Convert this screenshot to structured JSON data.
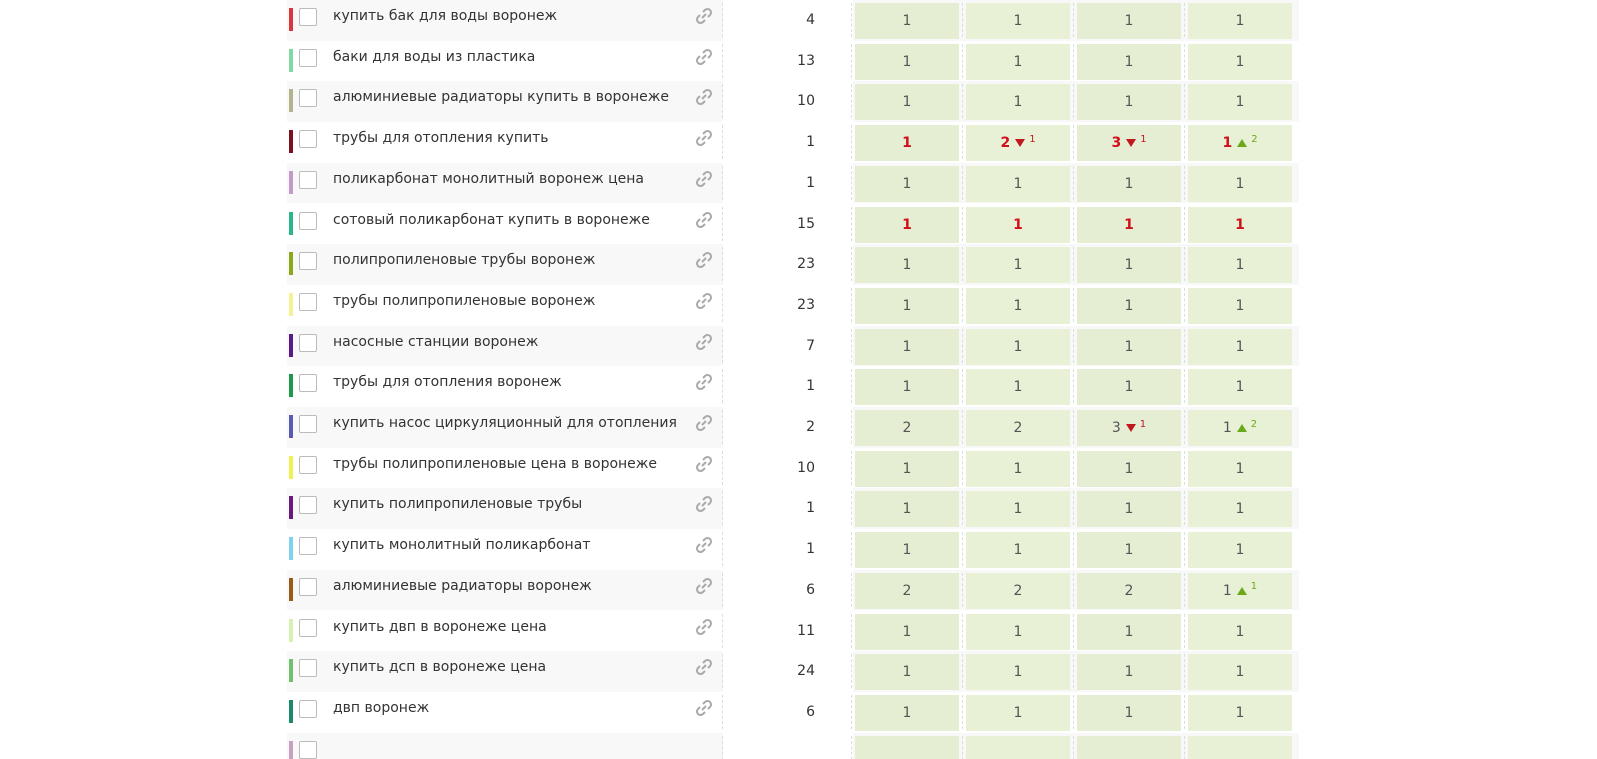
{
  "table": {
    "rows": [
      {
        "color": "#d9363e",
        "keyword": "купить бак для воды воронеж",
        "frequency": 4,
        "positions": [
          {
            "value": 1
          },
          {
            "value": 1
          },
          {
            "value": 1
          },
          {
            "value": 1
          }
        ]
      },
      {
        "color": "#7fd9a3",
        "keyword": "баки для воды из пластика",
        "frequency": 13,
        "positions": [
          {
            "value": 1
          },
          {
            "value": 1
          },
          {
            "value": 1
          },
          {
            "value": 1
          }
        ]
      },
      {
        "color": "#b3b38c",
        "keyword": "алюминиевые радиаторы купить в воронеже",
        "frequency": 10,
        "positions": [
          {
            "value": 1
          },
          {
            "value": 1
          },
          {
            "value": 1
          },
          {
            "value": 1
          }
        ]
      },
      {
        "color": "#7a1020",
        "keyword": "трубы для отопления купить",
        "frequency": 1,
        "highlight": true,
        "positions": [
          {
            "value": 1
          },
          {
            "value": 2,
            "trend": "down",
            "change": 1
          },
          {
            "value": 3,
            "trend": "down",
            "change": 1
          },
          {
            "value": 1,
            "trend": "up",
            "change": 2
          }
        ]
      },
      {
        "color": "#c49ac9",
        "keyword": "поликарбонат монолитный воронеж цена",
        "frequency": 1,
        "positions": [
          {
            "value": 1
          },
          {
            "value": 1
          },
          {
            "value": 1
          },
          {
            "value": 1
          }
        ]
      },
      {
        "color": "#2bb58a",
        "keyword": "сотовый поликарбонат купить в воронеже",
        "frequency": 15,
        "highlight": true,
        "positions": [
          {
            "value": 1
          },
          {
            "value": 1
          },
          {
            "value": 1
          },
          {
            "value": 1
          }
        ]
      },
      {
        "color": "#8aa81a",
        "keyword": "полипропиленовые трубы воронеж",
        "frequency": 23,
        "positions": [
          {
            "value": 1
          },
          {
            "value": 1
          },
          {
            "value": 1
          },
          {
            "value": 1
          }
        ]
      },
      {
        "color": "#f3f394",
        "keyword": "трубы полипропиленовые воронеж",
        "frequency": 23,
        "positions": [
          {
            "value": 1
          },
          {
            "value": 1
          },
          {
            "value": 1
          },
          {
            "value": 1
          }
        ]
      },
      {
        "color": "#5a1a8a",
        "keyword": "насосные станции воронеж",
        "frequency": 7,
        "positions": [
          {
            "value": 1
          },
          {
            "value": 1
          },
          {
            "value": 1
          },
          {
            "value": 1
          }
        ]
      },
      {
        "color": "#1a9a4a",
        "keyword": "трубы для отопления воронеж",
        "frequency": 1,
        "positions": [
          {
            "value": 1
          },
          {
            "value": 1
          },
          {
            "value": 1
          },
          {
            "value": 1
          }
        ]
      },
      {
        "color": "#5a5ab5",
        "keyword": "купить насос циркуляционный для отопления",
        "frequency": 2,
        "positions": [
          {
            "value": 2
          },
          {
            "value": 2
          },
          {
            "value": 3,
            "trend": "down",
            "change": 1
          },
          {
            "value": 1,
            "trend": "up",
            "change": 2
          }
        ]
      },
      {
        "color": "#f0f050",
        "keyword": "трубы полипропиленовые цена в воронеже",
        "frequency": 10,
        "positions": [
          {
            "value": 1
          },
          {
            "value": 1
          },
          {
            "value": 1
          },
          {
            "value": 1
          }
        ]
      },
      {
        "color": "#6a1a7a",
        "keyword": "купить полипропиленовые трубы",
        "frequency": 1,
        "positions": [
          {
            "value": 1
          },
          {
            "value": 1
          },
          {
            "value": 1
          },
          {
            "value": 1
          }
        ]
      },
      {
        "color": "#80d0f0",
        "keyword": "купить монолитный поликарбонат",
        "frequency": 1,
        "positions": [
          {
            "value": 1
          },
          {
            "value": 1
          },
          {
            "value": 1
          },
          {
            "value": 1
          }
        ]
      },
      {
        "color": "#9a5a1a",
        "keyword": "алюминиевые радиаторы воронеж",
        "frequency": 6,
        "positions": [
          {
            "value": 2
          },
          {
            "value": 2
          },
          {
            "value": 2
          },
          {
            "value": 1,
            "trend": "up",
            "change": 1
          }
        ]
      },
      {
        "color": "#d8f0b0",
        "keyword": "купить двп в воронеже цена",
        "frequency": 11,
        "positions": [
          {
            "value": 1
          },
          {
            "value": 1
          },
          {
            "value": 1
          },
          {
            "value": 1
          }
        ]
      },
      {
        "color": "#70c070",
        "keyword": "купить дсп в воронеже цена",
        "frequency": 24,
        "positions": [
          {
            "value": 1
          },
          {
            "value": 1
          },
          {
            "value": 1
          },
          {
            "value": 1
          }
        ]
      },
      {
        "color": "#1a8a6a",
        "keyword": "двп воронеж",
        "frequency": 6,
        "positions": [
          {
            "value": 1
          },
          {
            "value": 1
          },
          {
            "value": 1
          },
          {
            "value": 1
          }
        ]
      }
    ]
  }
}
